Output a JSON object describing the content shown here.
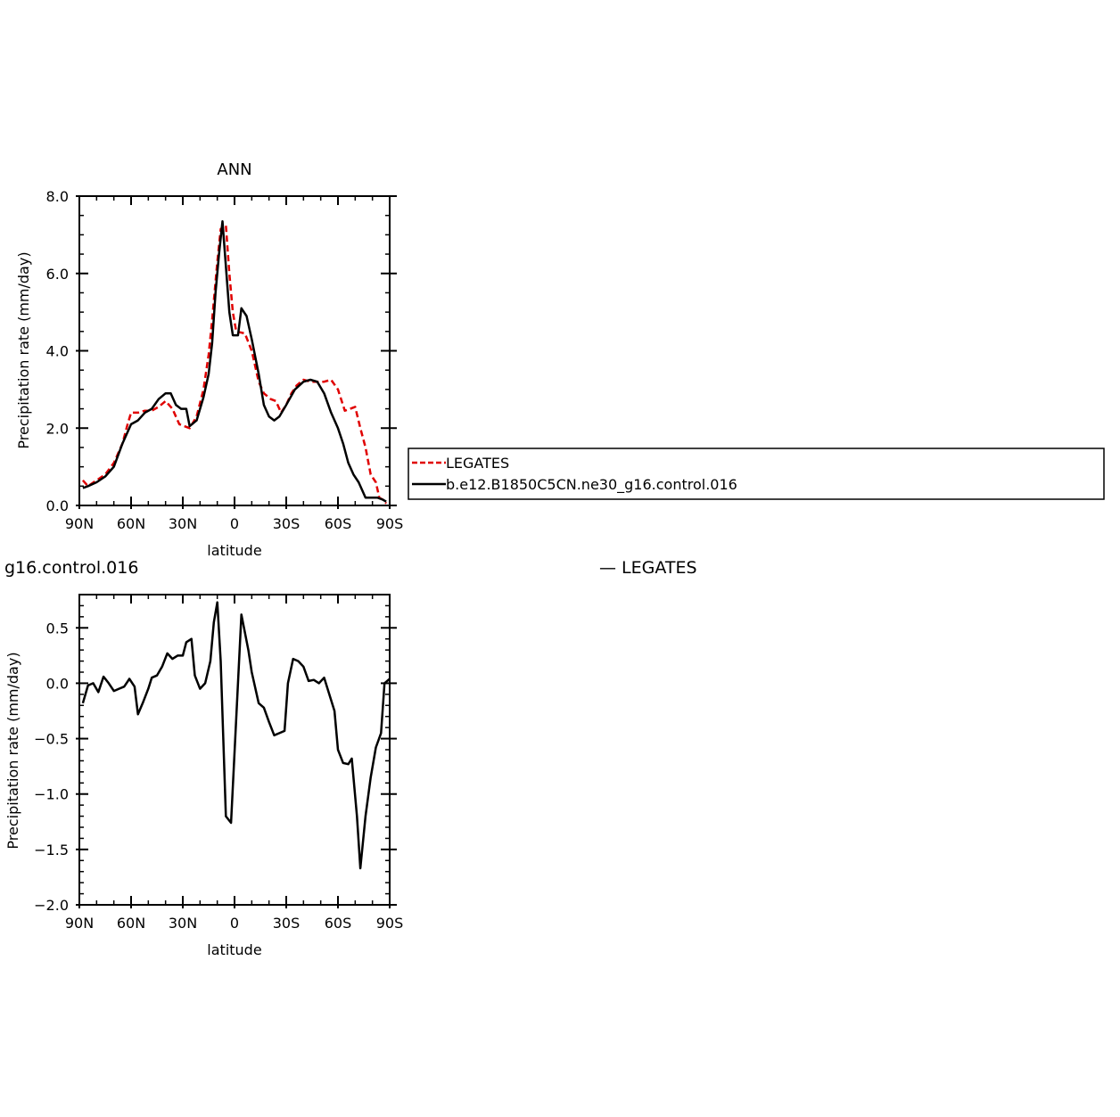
{
  "chart_data": [
    {
      "type": "line",
      "title": "ANN",
      "xlabel": "latitude",
      "ylabel": "Precipitation rate (mm/day)",
      "xlim": [
        90,
        -90
      ],
      "ylim": [
        0.0,
        8.0
      ],
      "x_ticks": [
        90,
        60,
        30,
        0,
        -30,
        -60,
        -90
      ],
      "x_tick_labels": [
        "90N",
        "60N",
        "30N",
        "0",
        "30S",
        "60S",
        "90S"
      ],
      "y_ticks": [
        0,
        2,
        4,
        6,
        8
      ],
      "y_tick_labels": [
        "0.0",
        "2.0",
        "4.0",
        "6.0",
        "8.0"
      ],
      "legend_placement": "right",
      "series": [
        {
          "name": "LEGATES",
          "color": "#e00000",
          "dash": "dashed",
          "points": [
            [
              88,
              0.65
            ],
            [
              85,
              0.5
            ],
            [
              80,
              0.65
            ],
            [
              75,
              0.8
            ],
            [
              70,
              1.1
            ],
            [
              65,
              1.6
            ],
            [
              62,
              2.1
            ],
            [
              60,
              2.4
            ],
            [
              56,
              2.4
            ],
            [
              52,
              2.45
            ],
            [
              48,
              2.45
            ],
            [
              44,
              2.55
            ],
            [
              40,
              2.7
            ],
            [
              36,
              2.5
            ],
            [
              32,
              2.1
            ],
            [
              26,
              2.0
            ],
            [
              22,
              2.3
            ],
            [
              18,
              3.0
            ],
            [
              15,
              3.9
            ],
            [
              13,
              4.8
            ],
            [
              10,
              6.3
            ],
            [
              8,
              7.15
            ],
            [
              5,
              7.25
            ],
            [
              3,
              6.0
            ],
            [
              1,
              5.0
            ],
            [
              -1,
              4.5
            ],
            [
              -6,
              4.45
            ],
            [
              -10,
              4.0
            ],
            [
              -14,
              3.2
            ],
            [
              -17,
              2.9
            ],
            [
              -21,
              2.75
            ],
            [
              -24,
              2.7
            ],
            [
              -27,
              2.4
            ],
            [
              -30,
              2.6
            ],
            [
              -33,
              2.9
            ],
            [
              -36,
              3.1
            ],
            [
              -40,
              3.25
            ],
            [
              -44,
              3.2
            ],
            [
              -48,
              3.2
            ],
            [
              -52,
              3.2
            ],
            [
              -56,
              3.25
            ],
            [
              -60,
              3.0
            ],
            [
              -64,
              2.45
            ],
            [
              -67,
              2.5
            ],
            [
              -70,
              2.55
            ],
            [
              -73,
              2.0
            ],
            [
              -76,
              1.5
            ],
            [
              -79,
              0.8
            ],
            [
              -82,
              0.6
            ],
            [
              -84,
              0.2
            ],
            [
              -86,
              0.15
            ],
            [
              -88,
              0.05
            ]
          ]
        },
        {
          "name": "b.e12.B1850C5CN.ne30_g16.control.016",
          "color": "#000000",
          "dash": "solid",
          "points": [
            [
              88,
              0.45
            ],
            [
              85,
              0.5
            ],
            [
              80,
              0.6
            ],
            [
              75,
              0.75
            ],
            [
              70,
              1.0
            ],
            [
              65,
              1.6
            ],
            [
              60,
              2.1
            ],
            [
              56,
              2.2
            ],
            [
              52,
              2.4
            ],
            [
              48,
              2.5
            ],
            [
              44,
              2.75
            ],
            [
              40,
              2.9
            ],
            [
              37,
              2.9
            ],
            [
              34,
              2.6
            ],
            [
              31,
              2.5
            ],
            [
              28,
              2.5
            ],
            [
              26,
              2.05
            ],
            [
              22,
              2.2
            ],
            [
              18,
              2.8
            ],
            [
              15,
              3.4
            ],
            [
              13,
              4.2
            ],
            [
              11,
              5.5
            ],
            [
              9,
              6.5
            ],
            [
              7,
              7.35
            ],
            [
              3,
              5.0
            ],
            [
              1,
              4.4
            ],
            [
              -2,
              4.4
            ],
            [
              -4,
              5.1
            ],
            [
              -7,
              4.9
            ],
            [
              -10,
              4.3
            ],
            [
              -14,
              3.4
            ],
            [
              -17,
              2.6
            ],
            [
              -20,
              2.3
            ],
            [
              -23,
              2.2
            ],
            [
              -26,
              2.3
            ],
            [
              -30,
              2.6
            ],
            [
              -35,
              3.0
            ],
            [
              -40,
              3.2
            ],
            [
              -44,
              3.25
            ],
            [
              -48,
              3.2
            ],
            [
              -52,
              2.9
            ],
            [
              -56,
              2.4
            ],
            [
              -60,
              2.0
            ],
            [
              -63,
              1.6
            ],
            [
              -66,
              1.1
            ],
            [
              -69,
              0.8
            ],
            [
              -72,
              0.6
            ],
            [
              -76,
              0.2
            ],
            [
              -80,
              0.2
            ],
            [
              -83,
              0.2
            ],
            [
              -86,
              0.15
            ],
            [
              -88,
              0.1
            ]
          ]
        }
      ]
    },
    {
      "type": "line",
      "title": "g16.control.016",
      "title_right": "— LEGATES",
      "xlabel": "latitude",
      "ylabel": "Precipitation rate (mm/day)",
      "xlim": [
        90,
        -90
      ],
      "ylim": [
        -2.0,
        0.8
      ],
      "x_ticks": [
        90,
        60,
        30,
        0,
        -30,
        -60,
        -90
      ],
      "x_tick_labels": [
        "90N",
        "60N",
        "30N",
        "0",
        "30S",
        "60S",
        "90S"
      ],
      "y_ticks": [
        0.5,
        0.0,
        -0.5,
        -1.0,
        -1.5,
        -2.0
      ],
      "y_tick_labels": [
        "0.5",
        "0.0",
        "−0.5",
        "−1.0",
        "−1.5",
        "−2.0"
      ],
      "series": [
        {
          "color": "#000000",
          "dash": "solid",
          "points": [
            [
              88,
              -0.18
            ],
            [
              85,
              -0.02
            ],
            [
              82,
              0.0
            ],
            [
              79,
              -0.08
            ],
            [
              76,
              0.06
            ],
            [
              73,
              0.0
            ],
            [
              70,
              -0.07
            ],
            [
              67,
              -0.05
            ],
            [
              64,
              -0.03
            ],
            [
              61,
              0.04
            ],
            [
              58,
              -0.03
            ],
            [
              56,
              -0.28
            ],
            [
              53,
              -0.17
            ],
            [
              50,
              -0.05
            ],
            [
              48,
              0.05
            ],
            [
              45,
              0.07
            ],
            [
              42,
              0.15
            ],
            [
              39,
              0.27
            ],
            [
              36,
              0.22
            ],
            [
              33,
              0.25
            ],
            [
              30,
              0.25
            ],
            [
              28,
              0.37
            ],
            [
              25,
              0.4
            ],
            [
              23,
              0.07
            ],
            [
              20,
              -0.05
            ],
            [
              17,
              0.0
            ],
            [
              14,
              0.2
            ],
            [
              12,
              0.55
            ],
            [
              10,
              0.73
            ],
            [
              8,
              0.2
            ],
            [
              5,
              -1.2
            ],
            [
              2,
              -1.26
            ],
            [
              -4,
              0.62
            ],
            [
              -8,
              0.3
            ],
            [
              -10,
              0.1
            ],
            [
              -14,
              -0.18
            ],
            [
              -17,
              -0.22
            ],
            [
              -20,
              -0.35
            ],
            [
              -23,
              -0.47
            ],
            [
              -26,
              -0.45
            ],
            [
              -29,
              -0.43
            ],
            [
              -31,
              0.0
            ],
            [
              -34,
              0.22
            ],
            [
              -37,
              0.2
            ],
            [
              -40,
              0.15
            ],
            [
              -43,
              0.02
            ],
            [
              -46,
              0.03
            ],
            [
              -49,
              0.0
            ],
            [
              -52,
              0.05
            ],
            [
              -55,
              -0.1
            ],
            [
              -58,
              -0.25
            ],
            [
              -60,
              -0.6
            ],
            [
              -63,
              -0.72
            ],
            [
              -66,
              -0.73
            ],
            [
              -68,
              -0.68
            ],
            [
              -71,
              -1.2
            ],
            [
              -73,
              -1.67
            ],
            [
              -76,
              -1.2
            ],
            [
              -79,
              -0.85
            ],
            [
              -82,
              -0.58
            ],
            [
              -85,
              -0.45
            ],
            [
              -87,
              0.0
            ],
            [
              -90,
              0.04
            ]
          ]
        }
      ]
    }
  ]
}
